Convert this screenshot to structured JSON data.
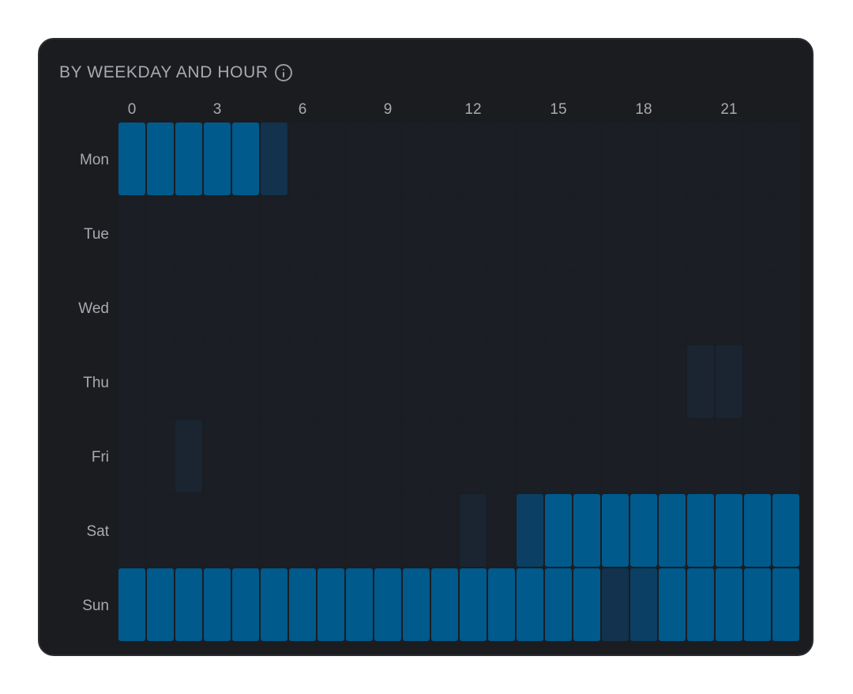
{
  "card": {
    "title": "BY WEEKDAY AND HOUR",
    "info_icon": "info-icon"
  },
  "colors": {
    "card_bg": "#1b1c1f",
    "grid_bg": "#1a1d23",
    "empty_cell": "#1b1e24",
    "low_cell": "#1a2531",
    "mid_cell": "#0b3f63",
    "high_cell": "#005a8c",
    "text_muted": "#a9aab0"
  },
  "chart_data": {
    "type": "heatmap",
    "title": "BY WEEKDAY AND HOUR",
    "x_ticks": [
      "0",
      "3",
      "6",
      "9",
      "12",
      "15",
      "18",
      "21"
    ],
    "x_tick_hours": [
      0,
      3,
      6,
      9,
      12,
      15,
      18,
      21
    ],
    "hours": [
      0,
      1,
      2,
      3,
      4,
      5,
      6,
      7,
      8,
      9,
      10,
      11,
      12,
      13,
      14,
      15,
      16,
      17,
      18,
      19,
      20,
      21,
      22,
      23
    ],
    "rows": [
      "Mon",
      "Tue",
      "Wed",
      "Thu",
      "Fri",
      "Sat",
      "Sun"
    ],
    "intensity_scale": "0 = none, 1 = low, 2 = medium, 3 = high",
    "values": [
      [
        3,
        3,
        3,
        3,
        3,
        1.3,
        0,
        0,
        0,
        0,
        0,
        0,
        0,
        0,
        0,
        0,
        0,
        0,
        0,
        0,
        0,
        0,
        0,
        0
      ],
      [
        0,
        0,
        0,
        0,
        0,
        0,
        0,
        0,
        0,
        0,
        0,
        0,
        0,
        0,
        0,
        0,
        0,
        0,
        0,
        0,
        0,
        0,
        0,
        0
      ],
      [
        0,
        0,
        0,
        0,
        0,
        0,
        0,
        0,
        0,
        0,
        0,
        0,
        0,
        0,
        0,
        0,
        0,
        0,
        0,
        0,
        0,
        0,
        0,
        0
      ],
      [
        0,
        0,
        0,
        0,
        0,
        0,
        0,
        0,
        0,
        0,
        0,
        0,
        0,
        0,
        0,
        0,
        0,
        0,
        0,
        0,
        1,
        1,
        0,
        0
      ],
      [
        0,
        0,
        1,
        0,
        0,
        0,
        0,
        0,
        0,
        0,
        0,
        0,
        0,
        0,
        0,
        0,
        0,
        0,
        0,
        0,
        0,
        0,
        0,
        0
      ],
      [
        0,
        0,
        0,
        0,
        0,
        0,
        0,
        0,
        0,
        0,
        0,
        0,
        1,
        0,
        2,
        3,
        3,
        3,
        3,
        3,
        3,
        3,
        3,
        3
      ],
      [
        3,
        3,
        3,
        3,
        3,
        3,
        3,
        3,
        3,
        3,
        3,
        3,
        3,
        3,
        3,
        3,
        3,
        1.3,
        2,
        3,
        3,
        3,
        3,
        3
      ]
    ]
  }
}
